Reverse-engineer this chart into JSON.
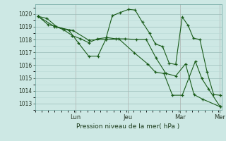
{
  "bg_color": "#cde8e4",
  "grid_color_minor": "#b8d8d4",
  "grid_color_major": "#9abcb8",
  "line_color": "#1a5c1a",
  "ylabel": "Pression niveau de la mer( hPa )",
  "ylim": [
    1012.5,
    1020.75
  ],
  "yticks": [
    1013,
    1014,
    1015,
    1016,
    1017,
    1018,
    1019,
    1020
  ],
  "xlim": [
    0,
    310
  ],
  "day_positions": [
    62,
    142,
    222,
    282
  ],
  "day_labels": [
    "Lun",
    "Jeu",
    "Mar",
    "Mer"
  ],
  "series": [
    [
      [
        5,
        1019.8
      ],
      [
        18,
        1019.65
      ],
      [
        33,
        1019.0
      ],
      [
        52,
        1018.7
      ],
      [
        66,
        1017.75
      ],
      [
        82,
        1016.7
      ],
      [
        96,
        1016.7
      ],
      [
        108,
        1018.0
      ],
      [
        118,
        1019.85
      ],
      [
        130,
        1020.1
      ],
      [
        143,
        1020.35
      ],
      [
        153,
        1020.3
      ],
      [
        164,
        1019.35
      ],
      [
        175,
        1018.5
      ],
      [
        184,
        1017.65
      ],
      [
        195,
        1017.45
      ],
      [
        205,
        1016.15
      ],
      [
        215,
        1016.05
      ],
      [
        225,
        1019.75
      ],
      [
        234,
        1019.1
      ],
      [
        242,
        1018.1
      ],
      [
        252,
        1018.0
      ],
      [
        263,
        1015.45
      ],
      [
        273,
        1013.7
      ],
      [
        283,
        1013.65
      ]
    ],
    [
      [
        5,
        1019.8
      ],
      [
        30,
        1019.0
      ],
      [
        58,
        1018.7
      ],
      [
        82,
        1017.95
      ],
      [
        108,
        1018.0
      ],
      [
        128,
        1018.05
      ],
      [
        152,
        1016.95
      ],
      [
        172,
        1016.1
      ],
      [
        184,
        1015.45
      ],
      [
        197,
        1015.35
      ],
      [
        210,
        1013.65
      ],
      [
        225,
        1013.65
      ],
      [
        245,
        1016.3
      ],
      [
        255,
        1014.95
      ],
      [
        265,
        1014.15
      ],
      [
        283,
        1012.75
      ]
    ],
    [
      [
        5,
        1019.8
      ],
      [
        20,
        1019.15
      ],
      [
        30,
        1019.05
      ],
      [
        44,
        1018.75
      ],
      [
        57,
        1018.3
      ],
      [
        70,
        1018.05
      ],
      [
        82,
        1017.75
      ],
      [
        95,
        1018.05
      ],
      [
        110,
        1018.15
      ],
      [
        124,
        1018.05
      ],
      [
        138,
        1018.05
      ],
      [
        155,
        1018.0
      ],
      [
        170,
        1018.0
      ],
      [
        185,
        1016.55
      ],
      [
        200,
        1015.35
      ],
      [
        215,
        1015.15
      ],
      [
        230,
        1016.1
      ],
      [
        243,
        1013.7
      ],
      [
        256,
        1013.35
      ],
      [
        283,
        1012.75
      ]
    ]
  ]
}
